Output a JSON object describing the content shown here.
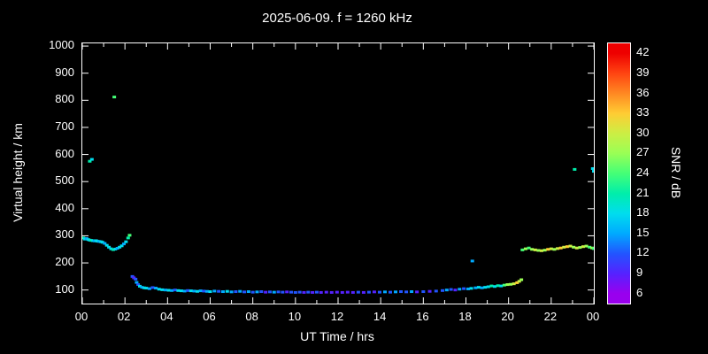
{
  "chart_data": {
    "type": "scatter",
    "title": "2025-06-09. f = 1260 kHz",
    "xlabel": "UT Time / hrs",
    "ylabel": "Virtual height / km",
    "xlim": [
      0,
      24
    ],
    "ylim": [
      50,
      1010
    ],
    "grid": false,
    "background": "#000000",
    "frame_color": "#ffffff",
    "x_ticks": [
      {
        "v": 0,
        "label": "00"
      },
      {
        "v": 2,
        "label": "02"
      },
      {
        "v": 4,
        "label": "04"
      },
      {
        "v": 6,
        "label": "06"
      },
      {
        "v": 8,
        "label": "08"
      },
      {
        "v": 10,
        "label": "10"
      },
      {
        "v": 12,
        "label": "12"
      },
      {
        "v": 14,
        "label": "14"
      },
      {
        "v": 16,
        "label": "16"
      },
      {
        "v": 18,
        "label": "18"
      },
      {
        "v": 20,
        "label": "20"
      },
      {
        "v": 22,
        "label": "22"
      },
      {
        "v": 24,
        "label": "00"
      }
    ],
    "y_ticks": [
      100,
      200,
      300,
      400,
      500,
      600,
      700,
      800,
      900,
      1000
    ],
    "colorbar": {
      "label": "SNR / dB",
      "min": 4.5,
      "max": 43.5,
      "ticks": [
        6,
        9,
        12,
        15,
        18,
        21,
        24,
        27,
        30,
        33,
        36,
        39,
        42
      ],
      "stops": [
        {
          "v": 6,
          "c": "#9900ee"
        },
        {
          "v": 9,
          "c": "#5522ff"
        },
        {
          "v": 12,
          "c": "#2255ff"
        },
        {
          "v": 15,
          "c": "#00aaff"
        },
        {
          "v": 18,
          "c": "#00ddee"
        },
        {
          "v": 21,
          "c": "#00eeaa"
        },
        {
          "v": 24,
          "c": "#44ff77"
        },
        {
          "v": 27,
          "c": "#99ff55"
        },
        {
          "v": 30,
          "c": "#ccee44"
        },
        {
          "v": 33,
          "c": "#ffcc33"
        },
        {
          "v": 36,
          "c": "#ff8822"
        },
        {
          "v": 39,
          "c": "#ff4411"
        },
        {
          "v": 42,
          "c": "#ee0000"
        }
      ]
    },
    "points": [
      [
        0.05,
        292,
        21
      ],
      [
        0.12,
        288,
        18
      ],
      [
        0.2,
        290,
        15
      ],
      [
        0.28,
        286,
        18
      ],
      [
        0.35,
        284,
        18
      ],
      [
        0.42,
        283,
        21
      ],
      [
        0.5,
        282,
        18
      ],
      [
        0.58,
        281,
        15
      ],
      [
        0.65,
        282,
        18
      ],
      [
        0.72,
        280,
        18
      ],
      [
        0.8,
        279,
        15
      ],
      [
        0.88,
        278,
        18
      ],
      [
        0.95,
        276,
        18
      ],
      [
        0.35,
        575,
        21
      ],
      [
        0.45,
        582,
        18
      ],
      [
        1.05,
        272,
        15
      ],
      [
        1.15,
        265,
        18
      ],
      [
        1.25,
        258,
        18
      ],
      [
        1.35,
        252,
        18
      ],
      [
        1.45,
        249,
        21
      ],
      [
        1.55,
        251,
        18
      ],
      [
        1.65,
        254,
        15
      ],
      [
        1.75,
        258,
        18
      ],
      [
        1.85,
        263,
        18
      ],
      [
        1.95,
        270,
        15
      ],
      [
        2.05,
        278,
        18
      ],
      [
        2.15,
        292,
        21
      ],
      [
        2.22,
        302,
        24
      ],
      [
        1.5,
        812,
        24
      ],
      [
        2.35,
        150,
        12
      ],
      [
        2.42,
        145,
        9
      ],
      [
        2.5,
        140,
        12
      ],
      [
        2.55,
        128,
        15
      ],
      [
        2.62,
        120,
        12
      ],
      [
        2.7,
        114,
        18
      ],
      [
        2.8,
        110,
        15
      ],
      [
        2.9,
        108,
        18
      ],
      [
        3.0,
        107,
        18
      ],
      [
        3.15,
        105,
        15
      ],
      [
        3.3,
        109,
        12
      ],
      [
        3.45,
        107,
        15
      ],
      [
        3.6,
        103,
        18
      ],
      [
        3.75,
        101,
        18
      ],
      [
        3.9,
        100,
        15
      ],
      [
        4.05,
        99,
        18
      ],
      [
        4.2,
        98,
        15
      ],
      [
        4.35,
        100,
        12
      ],
      [
        4.5,
        98,
        18
      ],
      [
        4.65,
        97,
        18
      ],
      [
        4.8,
        96,
        15
      ],
      [
        4.95,
        98,
        12
      ],
      [
        5.1,
        97,
        18
      ],
      [
        5.25,
        96,
        15
      ],
      [
        5.4,
        95,
        18
      ],
      [
        5.55,
        97,
        15
      ],
      [
        5.7,
        96,
        12
      ],
      [
        5.85,
        95,
        15
      ],
      [
        6.0,
        94,
        18
      ],
      [
        6.2,
        96,
        15
      ],
      [
        6.4,
        95,
        12
      ],
      [
        6.6,
        94,
        15
      ],
      [
        6.8,
        95,
        18
      ],
      [
        7.0,
        93,
        15
      ],
      [
        7.2,
        94,
        12
      ],
      [
        7.4,
        95,
        15
      ],
      [
        7.6,
        93,
        12
      ],
      [
        7.8,
        94,
        15
      ],
      [
        8.0,
        92,
        12
      ],
      [
        8.2,
        93,
        15
      ],
      [
        8.4,
        94,
        12
      ],
      [
        8.6,
        92,
        9
      ],
      [
        8.8,
        93,
        12
      ],
      [
        9.0,
        92,
        15
      ],
      [
        9.2,
        93,
        12
      ],
      [
        9.4,
        92,
        12
      ],
      [
        9.6,
        93,
        9
      ],
      [
        9.8,
        92,
        12
      ],
      [
        10.0,
        91,
        12
      ],
      [
        10.2,
        92,
        12
      ],
      [
        10.4,
        91,
        9
      ],
      [
        10.6,
        92,
        12
      ],
      [
        10.8,
        91,
        9
      ],
      [
        11.0,
        92,
        12
      ],
      [
        11.2,
        91,
        9
      ],
      [
        11.45,
        92,
        9
      ],
      [
        11.7,
        91,
        9
      ],
      [
        11.95,
        92,
        9
      ],
      [
        12.2,
        91,
        9
      ],
      [
        12.45,
        92,
        9
      ],
      [
        12.7,
        91,
        9
      ],
      [
        12.95,
        92,
        12
      ],
      [
        13.2,
        91,
        9
      ],
      [
        13.45,
        92,
        12
      ],
      [
        13.7,
        93,
        9
      ],
      [
        13.95,
        92,
        12
      ],
      [
        14.2,
        93,
        15
      ],
      [
        14.45,
        92,
        12
      ],
      [
        14.7,
        93,
        15
      ],
      [
        14.95,
        94,
        12
      ],
      [
        15.2,
        93,
        12
      ],
      [
        15.45,
        94,
        15
      ],
      [
        15.7,
        93,
        9
      ],
      [
        16.0,
        94,
        12
      ],
      [
        16.3,
        95,
        9
      ],
      [
        16.6,
        96,
        12
      ],
      [
        16.9,
        98,
        12
      ],
      [
        17.1,
        100,
        15
      ],
      [
        17.3,
        102,
        12
      ],
      [
        17.5,
        100,
        9
      ],
      [
        17.7,
        103,
        15
      ],
      [
        17.9,
        105,
        12
      ],
      [
        18.1,
        104,
        15
      ],
      [
        18.25,
        106,
        18
      ],
      [
        18.3,
        207,
        15
      ],
      [
        18.45,
        108,
        15
      ],
      [
        18.6,
        110,
        18
      ],
      [
        18.75,
        108,
        15
      ],
      [
        18.9,
        110,
        18
      ],
      [
        19.05,
        112,
        18
      ],
      [
        19.2,
        115,
        21
      ],
      [
        19.35,
        113,
        18
      ],
      [
        19.5,
        116,
        21
      ],
      [
        19.65,
        115,
        18
      ],
      [
        19.8,
        118,
        24
      ],
      [
        19.95,
        120,
        27
      ],
      [
        20.1,
        121,
        27
      ],
      [
        20.25,
        123,
        30
      ],
      [
        20.4,
        127,
        33
      ],
      [
        20.5,
        132,
        30
      ],
      [
        20.6,
        138,
        27
      ],
      [
        20.65,
        248,
        24
      ],
      [
        20.8,
        252,
        27
      ],
      [
        20.95,
        255,
        24
      ],
      [
        21.1,
        250,
        27
      ],
      [
        21.25,
        248,
        30
      ],
      [
        21.4,
        246,
        27
      ],
      [
        21.55,
        245,
        30
      ],
      [
        21.7,
        247,
        27
      ],
      [
        21.85,
        250,
        33
      ],
      [
        22.0,
        252,
        30
      ],
      [
        22.15,
        250,
        27
      ],
      [
        22.3,
        253,
        30
      ],
      [
        22.45,
        255,
        33
      ],
      [
        22.6,
        258,
        30
      ],
      [
        22.75,
        260,
        33
      ],
      [
        22.9,
        262,
        30
      ],
      [
        23.05,
        258,
        27
      ],
      [
        23.2,
        255,
        30
      ],
      [
        23.35,
        257,
        27
      ],
      [
        23.5,
        260,
        30
      ],
      [
        23.65,
        262,
        27
      ],
      [
        23.8,
        258,
        24
      ],
      [
        23.92,
        255,
        27
      ],
      [
        24.0,
        253,
        24
      ],
      [
        23.1,
        545,
        21
      ],
      [
        23.95,
        548,
        18
      ],
      [
        24.0,
        538,
        18
      ]
    ]
  }
}
